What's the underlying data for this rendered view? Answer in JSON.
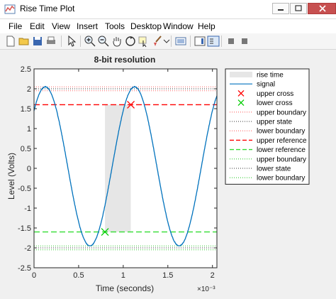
{
  "window": {
    "title": "Rise Time Plot",
    "minimize_icon": "minimize-icon",
    "maximize_icon": "maximize-icon",
    "close_icon": "close-icon"
  },
  "menu": [
    "File",
    "Edit",
    "View",
    "Insert",
    "Tools",
    "Desktop",
    "Window",
    "Help"
  ],
  "toolbar": {
    "icons": [
      "new-figure-icon",
      "open-file-icon",
      "save-icon",
      "print-icon",
      "pointer-icon",
      "zoom-in-icon",
      "zoom-out-icon",
      "pan-icon",
      "rotate-3d-icon",
      "data-cursor-icon",
      "brush-icon",
      "link-plot-icon",
      "insert-colorbar-icon",
      "insert-legend-icon",
      "hide-plot-tools-icon",
      "show-plot-tools-icon"
    ]
  },
  "chart_data": {
    "type": "line",
    "title": "8-bit resolution",
    "xlabel": "Time (seconds)",
    "ylabel": "Level (Volts)",
    "x_exponent": "×10⁻³",
    "xlim": [
      0,
      2.05
    ],
    "ylim": [
      -2.5,
      2.5
    ],
    "xticks": [
      "0",
      "0.5",
      "1",
      "1.5",
      "2"
    ],
    "yticks": [
      "-2.5",
      "-2",
      "-1.5",
      "-1",
      "-0.5",
      "0",
      "0.5",
      "1",
      "1.5",
      "2",
      "2.5"
    ],
    "grid": false,
    "legend_position": "top-right (outside axes)",
    "signal": {
      "amplitude": 2.0,
      "offset": 0.05,
      "period_ms": 1.0,
      "phase_at_zero": 0.775,
      "color": "#0072bd"
    },
    "rise_time_patch": {
      "x_start": 0.795,
      "x_end": 1.085,
      "y_low": -1.6,
      "y_high": 1.6,
      "color": "#e6e6e6"
    },
    "upper_cross": {
      "x": 1.085,
      "y": 1.6,
      "color": "#ff0000"
    },
    "lower_cross": {
      "x": 0.795,
      "y": -1.6,
      "color": "#00cc00"
    },
    "levels": {
      "upper_boundary_top": 2.05,
      "upper_state": 2.0,
      "lower_boundary_upper": 1.95,
      "upper_reference": 1.6,
      "lower_reference": -1.6,
      "upper_boundary_lower": -1.95,
      "lower_state": -2.0,
      "lower_boundary": -2.05
    },
    "legend": [
      {
        "label": "rise time",
        "style": "patch",
        "color": "#e6e6e6"
      },
      {
        "label": "signal",
        "style": "solid",
        "color": "#0072bd"
      },
      {
        "label": "upper cross",
        "style": "marker-x",
        "color": "#ff0000"
      },
      {
        "label": "lower cross",
        "style": "marker-x",
        "color": "#00cc00"
      },
      {
        "label": "upper boundary",
        "style": "dotted",
        "color": "#ff6666"
      },
      {
        "label": "upper state",
        "style": "dotted",
        "color": "#333333"
      },
      {
        "label": "lower boundary",
        "style": "dotted",
        "color": "#ff6666"
      },
      {
        "label": "upper reference",
        "style": "dashed",
        "color": "#ff0000"
      },
      {
        "label": "lower reference",
        "style": "dashed",
        "color": "#33dd33"
      },
      {
        "label": "upper boundary",
        "style": "dotted",
        "color": "#33cc33"
      },
      {
        "label": "lower state",
        "style": "dotted",
        "color": "#333333"
      },
      {
        "label": "lower boundary",
        "style": "dotted",
        "color": "#33cc33"
      }
    ]
  }
}
